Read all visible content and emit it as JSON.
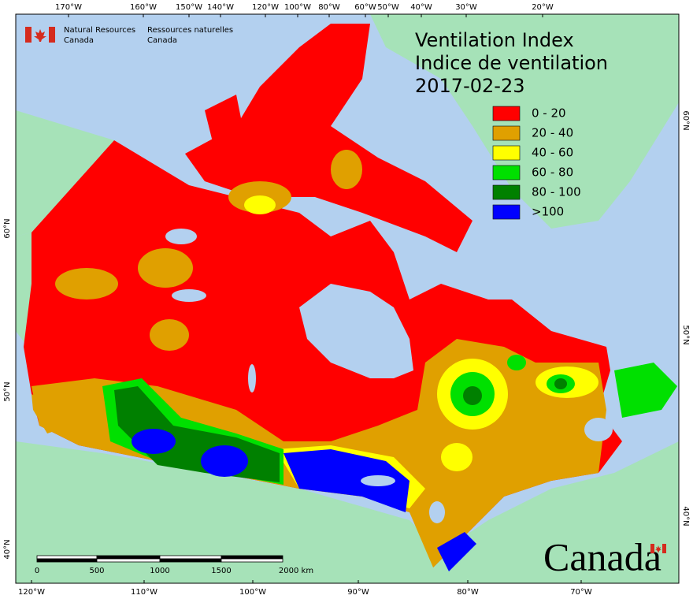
{
  "agency": {
    "en": [
      "Natural Resources",
      "Canada"
    ],
    "fr": [
      "Ressources naturelles",
      "Canada"
    ]
  },
  "title": [
    "Ventilation Index",
    "Indice de ventilation",
    "2017-02-23"
  ],
  "legend": [
    {
      "label": "0 - 20",
      "color": "#ff0000"
    },
    {
      "label": "20 - 40",
      "color": "#e0a000"
    },
    {
      "label": "40 - 60",
      "color": "#ffff00"
    },
    {
      "label": "60 - 80",
      "color": "#00e000"
    },
    {
      "label": "80 - 100",
      "color": "#008000"
    },
    {
      "label": ">100",
      "color": "#0000ff"
    }
  ],
  "graticule": {
    "top": [
      "170°W",
      "160°W",
      "150°W",
      "140°W",
      "120°W",
      "100°W",
      "80°W",
      "60°W",
      "50°W",
      "40°W",
      "30°W",
      "20°W"
    ],
    "bottom": [
      "120°W",
      "110°W",
      "100°W",
      "90°W",
      "80°W",
      "70°W"
    ],
    "left": [
      "60°N",
      "50°N",
      "40°N"
    ],
    "right": [
      "60°N",
      "50°N",
      "40°N"
    ]
  },
  "scale_bar": [
    "0",
    "500",
    "1000",
    "1500",
    "2000 km"
  ],
  "wordmark": "Canada"
}
